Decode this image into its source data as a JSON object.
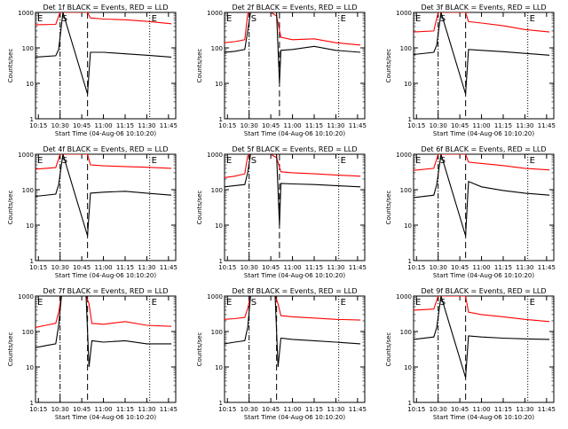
{
  "chart_data": [
    {
      "type": "line",
      "title": "Det 1f BLACK = Events, RED = LLD",
      "xlabel": "Start Time (04-Aug-06 10:10:20)",
      "ylabel": "Counts/sec",
      "xlim": [
        "10:13",
        "11:50"
      ],
      "ylim": [
        1,
        1000
      ],
      "y_scale": "log",
      "x_ticks": [
        "10:15",
        "10:30",
        "10:45",
        "11:00",
        "11:15",
        "11:30",
        "11:45"
      ],
      "y_ticks": [
        "1",
        "10",
        "100",
        "1000"
      ],
      "markers": [
        {
          "label": "E",
          "time": "10:13",
          "style": "dotted"
        },
        {
          "label": "S",
          "time": "10:30",
          "style": "dash-dot"
        },
        {
          "label": "",
          "time": "10:49",
          "style": "dashed"
        },
        {
          "label": "E",
          "time": "11:32",
          "style": "dotted"
        }
      ],
      "series": [
        {
          "color": "#ff0000",
          "x": [
            "10:13",
            "10:27",
            "10:30",
            "10:32",
            "10:49",
            "10:51",
            "11:00",
            "11:15",
            "11:30",
            "11:47"
          ],
          "values": [
            450,
            460,
            1000,
            1000,
            1000,
            700,
            650,
            620,
            560,
            480
          ]
        },
        {
          "color": "#000000",
          "x": [
            "10:13",
            "10:27",
            "10:29",
            "10:32",
            "10:49",
            "10:51",
            "11:00",
            "11:15",
            "11:30",
            "11:47"
          ],
          "values": [
            55,
            60,
            90,
            1000,
            5,
            75,
            75,
            68,
            62,
            55
          ]
        }
      ]
    },
    {
      "type": "line",
      "title": "Det 2f BLACK = Events, RED = LLD",
      "xlabel": "Start Time (04-Aug-06 10:10:20)",
      "ylabel": "Counts/sec",
      "xlim": [
        "10:13",
        "11:50"
      ],
      "ylim": [
        1,
        1000
      ],
      "y_scale": "log",
      "x_ticks": [
        "10:15",
        "10:30",
        "10:45",
        "11:00",
        "11:15",
        "11:30",
        "11:45"
      ],
      "y_ticks": [
        "1",
        "10",
        "100",
        "1000"
      ],
      "markers": [
        {
          "label": "E",
          "time": "10:13",
          "style": "dotted"
        },
        {
          "label": "S",
          "time": "10:30",
          "style": "dash-dot"
        },
        {
          "label": "",
          "time": "10:51",
          "style": "dashed"
        },
        {
          "label": "E",
          "time": "11:32",
          "style": "dotted"
        }
      ],
      "series": [
        {
          "color": "#ff0000",
          "x": [
            "10:13",
            "10:20",
            "10:27",
            "10:29",
            "10:31",
            "10:36",
            "10:45",
            "10:49",
            "10:52",
            "11:00",
            "11:15",
            "11:30",
            "11:47"
          ],
          "values": [
            140,
            150,
            170,
            900,
            1000,
            1000,
            1000,
            800,
            200,
            170,
            180,
            140,
            120
          ]
        },
        {
          "color": "#000000",
          "x": [
            "10:13",
            "10:20",
            "10:27",
            "10:29",
            "10:31",
            "10:49",
            "10:51",
            "10:52",
            "11:00",
            "11:15",
            "11:30",
            "11:47"
          ],
          "values": [
            75,
            80,
            90,
            300,
            1000,
            1000,
            10,
            85,
            90,
            110,
            85,
            75
          ]
        }
      ]
    },
    {
      "type": "line",
      "title": "Det 3f BLACK = Events, RED = LLD",
      "xlabel": "Start Time (04-Aug-06 10:10:20)",
      "ylabel": "Counts/sec",
      "xlim": [
        "10:13",
        "11:50"
      ],
      "ylim": [
        1,
        1000
      ],
      "y_scale": "log",
      "x_ticks": [
        "10:15",
        "10:30",
        "10:45",
        "11:00",
        "11:15",
        "11:30",
        "11:45"
      ],
      "y_ticks": [
        "1",
        "10",
        "100",
        "1000"
      ],
      "markers": [
        {
          "label": "E",
          "time": "10:13",
          "style": "dotted"
        },
        {
          "label": "S",
          "time": "10:30",
          "style": "dash-dot"
        },
        {
          "label": "",
          "time": "10:49",
          "style": "dashed"
        },
        {
          "label": "E",
          "time": "11:32",
          "style": "dotted"
        }
      ],
      "series": [
        {
          "color": "#ff0000",
          "x": [
            "10:13",
            "10:27",
            "10:30",
            "10:32",
            "10:49",
            "10:51",
            "11:00",
            "11:15",
            "11:30",
            "11:47"
          ],
          "values": [
            280,
            300,
            1000,
            1000,
            1000,
            550,
            500,
            420,
            330,
            280
          ]
        },
        {
          "color": "#000000",
          "x": [
            "10:13",
            "10:27",
            "10:29",
            "10:32",
            "10:49",
            "10:51",
            "11:00",
            "11:15",
            "11:30",
            "11:47"
          ],
          "values": [
            65,
            75,
            120,
            1000,
            5,
            90,
            85,
            78,
            70,
            62
          ]
        }
      ]
    },
    {
      "type": "line",
      "title": "Det 4f BLACK = Events, RED = LLD",
      "xlabel": "Start Time (04-Aug-06 10:10:20)",
      "ylabel": "Counts/sec",
      "xlim": [
        "10:13",
        "11:50"
      ],
      "ylim": [
        1,
        1000
      ],
      "y_scale": "log",
      "x_ticks": [
        "10:15",
        "10:30",
        "10:45",
        "11:00",
        "11:15",
        "11:30",
        "11:45"
      ],
      "y_ticks": [
        "1",
        "10",
        "100",
        "1000"
      ],
      "markers": [
        {
          "label": "E",
          "time": "10:13",
          "style": "dotted"
        },
        {
          "label": "S",
          "time": "10:30",
          "style": "dash-dot"
        },
        {
          "label": "",
          "time": "10:49",
          "style": "dashed"
        },
        {
          "label": "E",
          "time": "11:32",
          "style": "dotted"
        }
      ],
      "series": [
        {
          "color": "#ff0000",
          "x": [
            "10:13",
            "10:27",
            "10:30",
            "10:32",
            "10:49",
            "10:51",
            "11:00",
            "11:15",
            "11:30",
            "11:47"
          ],
          "values": [
            380,
            420,
            1000,
            1000,
            1000,
            500,
            470,
            450,
            430,
            400
          ]
        },
        {
          "color": "#000000",
          "x": [
            "10:13",
            "10:27",
            "10:29",
            "10:32",
            "10:49",
            "10:51",
            "11:00",
            "11:15",
            "11:30",
            "11:47"
          ],
          "values": [
            65,
            75,
            140,
            1000,
            5,
            80,
            85,
            90,
            80,
            70
          ]
        }
      ]
    },
    {
      "type": "line",
      "title": "Det 5f BLACK = Events, RED = LLD",
      "xlabel": "Start Time (04-Aug-06 10:10:20)",
      "ylabel": "Counts/sec",
      "xlim": [
        "10:13",
        "11:50"
      ],
      "ylim": [
        1,
        1000
      ],
      "y_scale": "log",
      "x_ticks": [
        "10:15",
        "10:30",
        "10:45",
        "11:00",
        "11:15",
        "11:30",
        "11:45"
      ],
      "y_ticks": [
        "1",
        "10",
        "100",
        "1000"
      ],
      "markers": [
        {
          "label": "E",
          "time": "10:13",
          "style": "dotted"
        },
        {
          "label": "S",
          "time": "10:30",
          "style": "dash-dot"
        },
        {
          "label": "",
          "time": "10:51",
          "style": "dashed"
        },
        {
          "label": "E",
          "time": "11:32",
          "style": "dotted"
        }
      ],
      "series": [
        {
          "color": "#ff0000",
          "x": [
            "10:13",
            "10:20",
            "10:27",
            "10:29",
            "10:31",
            "10:36",
            "10:45",
            "10:49",
            "10:52",
            "11:00",
            "11:15",
            "11:30",
            "11:47"
          ],
          "values": [
            220,
            240,
            280,
            900,
            1000,
            1000,
            1000,
            800,
            320,
            300,
            280,
            260,
            240
          ]
        },
        {
          "color": "#000000",
          "x": [
            "10:13",
            "10:20",
            "10:27",
            "10:29",
            "10:31",
            "10:49",
            "10:51",
            "10:52",
            "11:00",
            "11:15",
            "11:30",
            "11:47"
          ],
          "values": [
            120,
            130,
            140,
            300,
            1000,
            1000,
            10,
            150,
            145,
            140,
            130,
            120
          ]
        }
      ]
    },
    {
      "type": "line",
      "title": "Det 6f BLACK = Events, RED = LLD",
      "xlabel": "Start Time (04-Aug-06 10:10:20)",
      "ylabel": "Counts/sec",
      "xlim": [
        "10:13",
        "11:50"
      ],
      "ylim": [
        1,
        1000
      ],
      "y_scale": "log",
      "x_ticks": [
        "10:15",
        "10:30",
        "10:45",
        "11:00",
        "11:15",
        "11:30",
        "11:45"
      ],
      "y_ticks": [
        "1",
        "10",
        "100",
        "1000"
      ],
      "markers": [
        {
          "label": "E",
          "time": "10:13",
          "style": "dotted"
        },
        {
          "label": "S",
          "time": "10:30",
          "style": "dash-dot"
        },
        {
          "label": "",
          "time": "10:49",
          "style": "dashed"
        },
        {
          "label": "E",
          "time": "11:32",
          "style": "dotted"
        }
      ],
      "series": [
        {
          "color": "#ff0000",
          "x": [
            "10:13",
            "10:27",
            "10:30",
            "10:32",
            "10:49",
            "10:51",
            "11:00",
            "11:15",
            "11:30",
            "11:47"
          ],
          "values": [
            350,
            400,
            1000,
            1000,
            1000,
            600,
            550,
            480,
            400,
            360
          ]
        },
        {
          "color": "#000000",
          "x": [
            "10:13",
            "10:27",
            "10:29",
            "10:32",
            "10:49",
            "10:51",
            "11:00",
            "11:15",
            "11:30",
            "11:47"
          ],
          "values": [
            60,
            70,
            140,
            1000,
            5,
            170,
            120,
            95,
            80,
            70
          ]
        }
      ]
    },
    {
      "type": "line",
      "title": "Det 7f BLACK = Events, RED = LLD",
      "xlabel": "Start Time (04-Aug-06 10:10:20)",
      "ylabel": "Counts/sec",
      "xlim": [
        "10:13",
        "11:50"
      ],
      "ylim": [
        1,
        1000
      ],
      "y_scale": "log",
      "x_ticks": [
        "10:15",
        "10:30",
        "10:45",
        "11:00",
        "11:15",
        "11:30",
        "11:45"
      ],
      "y_ticks": [
        "1",
        "10",
        "100",
        "1000"
      ],
      "markers": [
        {
          "label": "E",
          "time": "10:13",
          "style": "dotted"
        },
        {
          "label": "",
          "time": "10:30",
          "style": "dash-dot"
        },
        {
          "label": "",
          "time": "10:49",
          "style": "dashed"
        },
        {
          "label": "E",
          "time": "11:32",
          "style": "dotted"
        }
      ],
      "series": [
        {
          "color": "#ff0000",
          "x": [
            "10:13",
            "10:20",
            "10:27",
            "10:29",
            "10:31",
            "10:48",
            "10:50",
            "10:52",
            "11:00",
            "11:15",
            "11:30",
            "11:47"
          ],
          "values": [
            130,
            150,
            170,
            350,
            1000,
            1000,
            600,
            170,
            160,
            190,
            150,
            140
          ]
        },
        {
          "color": "#000000",
          "x": [
            "10:13",
            "10:20",
            "10:27",
            "10:29",
            "10:31",
            "10:48",
            "10:50",
            "10:52",
            "11:00",
            "11:15",
            "11:30",
            "11:47"
          ],
          "values": [
            35,
            40,
            45,
            150,
            1000,
            1000,
            10,
            55,
            50,
            55,
            45,
            45
          ]
        }
      ]
    },
    {
      "type": "line",
      "title": "Det 8f BLACK = Events, RED = LLD",
      "xlabel": "Start Time (04-Aug-06 10:10:20)",
      "ylabel": "Counts/sec",
      "xlim": [
        "10:13",
        "11:50"
      ],
      "ylim": [
        1,
        1000
      ],
      "y_scale": "log",
      "x_ticks": [
        "10:15",
        "10:30",
        "10:45",
        "11:00",
        "11:15",
        "11:30",
        "11:45"
      ],
      "y_ticks": [
        "1",
        "10",
        "100",
        "1000"
      ],
      "markers": [
        {
          "label": "E",
          "time": "10:13",
          "style": "dotted"
        },
        {
          "label": "S",
          "time": "10:30",
          "style": "dash-dot"
        },
        {
          "label": "",
          "time": "10:49",
          "style": "dashed"
        },
        {
          "label": "E",
          "time": "11:32",
          "style": "dotted"
        }
      ],
      "series": [
        {
          "color": "#ff0000",
          "x": [
            "10:13",
            "10:20",
            "10:27",
            "10:29",
            "10:31",
            "10:48",
            "10:50",
            "10:52",
            "11:00",
            "11:15",
            "11:30",
            "11:47"
          ],
          "values": [
            220,
            230,
            250,
            450,
            1000,
            1000,
            600,
            280,
            260,
            240,
            220,
            210
          ]
        },
        {
          "color": "#000000",
          "x": [
            "10:13",
            "10:20",
            "10:27",
            "10:29",
            "10:31",
            "10:48",
            "10:50",
            "10:52",
            "11:00",
            "11:15",
            "11:30",
            "11:47"
          ],
          "values": [
            45,
            50,
            55,
            130,
            1000,
            1000,
            10,
            65,
            60,
            55,
            50,
            45
          ]
        }
      ]
    },
    {
      "type": "line",
      "title": "Det 9f BLACK = Events, RED = LLD",
      "xlabel": "Start Time (04-Aug-06 10:10:20)",
      "ylabel": "Counts/sec",
      "xlim": [
        "10:13",
        "11:50"
      ],
      "ylim": [
        1,
        1000
      ],
      "y_scale": "log",
      "x_ticks": [
        "10:15",
        "10:30",
        "10:45",
        "11:00",
        "11:15",
        "11:30",
        "11:45"
      ],
      "y_ticks": [
        "1",
        "10",
        "100",
        "1000"
      ],
      "markers": [
        {
          "label": "E",
          "time": "10:13",
          "style": "dotted"
        },
        {
          "label": "S",
          "time": "10:30",
          "style": "dash-dot"
        },
        {
          "label": "",
          "time": "10:49",
          "style": "dashed"
        },
        {
          "label": "E",
          "time": "11:32",
          "style": "dotted"
        }
      ],
      "series": [
        {
          "color": "#ff0000",
          "x": [
            "10:13",
            "10:27",
            "10:30",
            "10:32",
            "10:49",
            "10:51",
            "11:00",
            "11:15",
            "11:30",
            "11:47"
          ],
          "values": [
            400,
            430,
            1000,
            1000,
            1000,
            350,
            300,
            260,
            220,
            190
          ]
        },
        {
          "color": "#000000",
          "x": [
            "10:13",
            "10:27",
            "10:29",
            "10:32",
            "10:49",
            "10:51",
            "11:00",
            "11:15",
            "11:30",
            "11:47"
          ],
          "values": [
            60,
            70,
            130,
            1000,
            5,
            75,
            70,
            65,
            62,
            60
          ]
        }
      ]
    }
  ]
}
